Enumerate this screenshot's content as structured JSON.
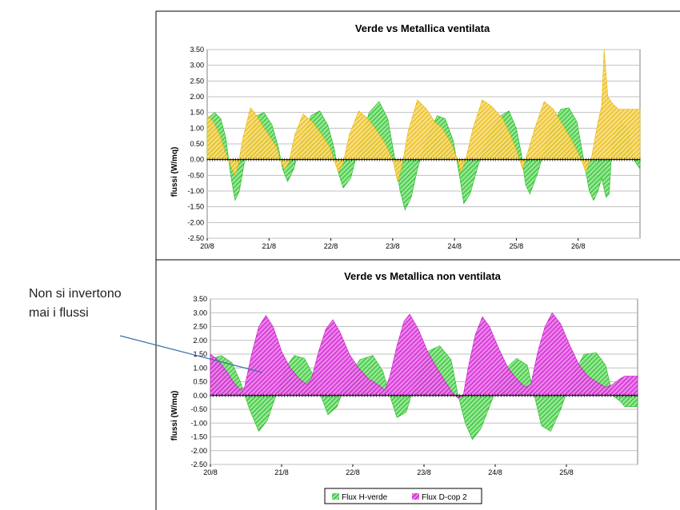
{
  "annotation": {
    "line1": "Non si invertono",
    "line2": "mai i flussi"
  },
  "colors": {
    "green": "#2ecc40",
    "yellow": "#f0c419",
    "magenta": "#d21fd2",
    "arrow": "#3f6fa8"
  },
  "chart_data": [
    {
      "type": "area",
      "title": "Verde vs Metallica ventilata",
      "xlabel": "",
      "ylabel": "flussi (W/mq)",
      "ylim": [
        -2.5,
        3.5
      ],
      "yticks": [
        3.5,
        3.0,
        2.5,
        2.0,
        1.5,
        1.0,
        0.5,
        0.0,
        -0.5,
        -1.0,
        -1.5,
        -2.0,
        -2.5
      ],
      "xlim": [
        0,
        7
      ],
      "xticks": [
        {
          "x": 0,
          "label": "20/8"
        },
        {
          "x": 1,
          "label": "21/8"
        },
        {
          "x": 2,
          "label": "22/8"
        },
        {
          "x": 3,
          "label": "23/8"
        },
        {
          "x": 4,
          "label": "24/8"
        },
        {
          "x": 5,
          "label": "25/8"
        },
        {
          "x": 6,
          "label": "26/8"
        }
      ],
      "grid": true,
      "series": [
        {
          "name": "Flux H-verde",
          "color_key": "green",
          "points": [
            [
              0,
              1.3
            ],
            [
              0.12,
              1.5
            ],
            [
              0.22,
              1.3
            ],
            [
              0.3,
              0.7
            ],
            [
              0.38,
              -0.5
            ],
            [
              0.45,
              -1.3
            ],
            [
              0.52,
              -1.0
            ],
            [
              0.6,
              -0.1
            ],
            [
              0.68,
              0.7
            ],
            [
              0.8,
              1.4
            ],
            [
              0.92,
              1.5
            ],
            [
              1.05,
              1.1
            ],
            [
              1.15,
              0.4
            ],
            [
              1.22,
              -0.3
            ],
            [
              1.3,
              -0.7
            ],
            [
              1.4,
              -0.3
            ],
            [
              1.52,
              0.6
            ],
            [
              1.68,
              1.4
            ],
            [
              1.82,
              1.55
            ],
            [
              1.95,
              1.1
            ],
            [
              2.05,
              0.4
            ],
            [
              2.12,
              -0.4
            ],
            [
              2.2,
              -0.9
            ],
            [
              2.32,
              -0.6
            ],
            [
              2.45,
              0.4
            ],
            [
              2.62,
              1.5
            ],
            [
              2.78,
              1.85
            ],
            [
              2.92,
              1.3
            ],
            [
              3.02,
              0.2
            ],
            [
              3.12,
              -1.0
            ],
            [
              3.2,
              -1.6
            ],
            [
              3.3,
              -1.2
            ],
            [
              3.4,
              -0.3
            ],
            [
              3.55,
              0.7
            ],
            [
              3.72,
              1.4
            ],
            [
              3.85,
              1.3
            ],
            [
              3.98,
              0.6
            ],
            [
              4.08,
              -0.5
            ],
            [
              4.15,
              -1.4
            ],
            [
              4.25,
              -1.1
            ],
            [
              4.38,
              -0.2
            ],
            [
              4.55,
              0.8
            ],
            [
              4.75,
              1.4
            ],
            [
              4.88,
              1.55
            ],
            [
              5.0,
              1.0
            ],
            [
              5.08,
              0.2
            ],
            [
              5.15,
              -0.8
            ],
            [
              5.22,
              -1.1
            ],
            [
              5.35,
              -0.4
            ],
            [
              5.55,
              1.0
            ],
            [
              5.72,
              1.6
            ],
            [
              5.85,
              1.65
            ],
            [
              5.98,
              1.2
            ],
            [
              6.08,
              0.1
            ],
            [
              6.18,
              -1.0
            ],
            [
              6.25,
              -1.3
            ],
            [
              6.32,
              -1.0
            ],
            [
              6.38,
              -0.6
            ],
            [
              6.45,
              -1.2
            ],
            [
              6.5,
              -1.1
            ],
            [
              6.55,
              0.5
            ],
            [
              6.6,
              0.8
            ],
            [
              6.7,
              1.2
            ],
            [
              6.8,
              1.0
            ],
            [
              6.85,
              0.5
            ],
            [
              6.9,
              0.0
            ],
            [
              7.0,
              -0.3
            ]
          ]
        },
        {
          "name": "Flux D-cop",
          "color_key": "yellow",
          "points": [
            [
              0,
              1.4
            ],
            [
              0.1,
              1.2
            ],
            [
              0.2,
              0.8
            ],
            [
              0.3,
              0.2
            ],
            [
              0.4,
              -0.3
            ],
            [
              0.45,
              -0.5
            ],
            [
              0.5,
              -0.2
            ],
            [
              0.58,
              0.7
            ],
            [
              0.7,
              1.65
            ],
            [
              0.8,
              1.4
            ],
            [
              0.92,
              1.0
            ],
            [
              1.02,
              0.7
            ],
            [
              1.12,
              0.4
            ],
            [
              1.18,
              0.0
            ],
            [
              1.25,
              -0.3
            ],
            [
              1.32,
              -0.1
            ],
            [
              1.42,
              0.8
            ],
            [
              1.55,
              1.45
            ],
            [
              1.7,
              1.2
            ],
            [
              1.85,
              0.8
            ],
            [
              1.98,
              0.4
            ],
            [
              2.05,
              0.0
            ],
            [
              2.12,
              -0.4
            ],
            [
              2.2,
              -0.1
            ],
            [
              2.3,
              0.8
            ],
            [
              2.45,
              1.55
            ],
            [
              2.6,
              1.3
            ],
            [
              2.75,
              0.9
            ],
            [
              2.88,
              0.5
            ],
            [
              3.0,
              0.0
            ],
            [
              3.08,
              -0.7
            ],
            [
              3.15,
              -0.2
            ],
            [
              3.25,
              0.9
            ],
            [
              3.4,
              1.9
            ],
            [
              3.55,
              1.6
            ],
            [
              3.68,
              1.2
            ],
            [
              3.8,
              1.0
            ],
            [
              3.95,
              0.5
            ],
            [
              4.05,
              0.0
            ],
            [
              4.1,
              -0.4
            ],
            [
              4.18,
              0.0
            ],
            [
              4.3,
              1.0
            ],
            [
              4.45,
              1.9
            ],
            [
              4.6,
              1.7
            ],
            [
              4.78,
              1.3
            ],
            [
              4.9,
              0.8
            ],
            [
              5.02,
              0.2
            ],
            [
              5.1,
              -0.3
            ],
            [
              5.18,
              0.2
            ],
            [
              5.3,
              1.0
            ],
            [
              5.45,
              1.85
            ],
            [
              5.6,
              1.6
            ],
            [
              5.75,
              1.1
            ],
            [
              5.9,
              0.6
            ],
            [
              6.05,
              0.0
            ],
            [
              6.12,
              -0.4
            ],
            [
              6.22,
              0.1
            ],
            [
              6.32,
              1.2
            ],
            [
              6.38,
              1.7
            ],
            [
              6.42,
              3.5
            ],
            [
              6.48,
              2.0
            ],
            [
              6.55,
              1.8
            ],
            [
              6.65,
              1.6
            ],
            [
              6.75,
              1.6
            ],
            [
              7.0,
              1.6
            ]
          ]
        }
      ]
    },
    {
      "type": "area",
      "title": "Verde vs Metallica non ventilata",
      "xlabel": "",
      "ylabel": "flussi (W/mq)",
      "ylim": [
        -2.5,
        3.5
      ],
      "yticks": [
        3.5,
        3.0,
        2.5,
        2.0,
        1.5,
        1.0,
        0.5,
        0.0,
        -0.5,
        -1.0,
        -1.5,
        -2.0,
        -2.5
      ],
      "xlim": [
        0,
        6
      ],
      "xticks": [
        {
          "x": 0,
          "label": "20/8"
        },
        {
          "x": 1,
          "label": "21/8"
        },
        {
          "x": 2,
          "label": "22/8"
        },
        {
          "x": 3,
          "label": "23/8"
        },
        {
          "x": 4,
          "label": "24/8"
        },
        {
          "x": 5,
          "label": "25/8"
        }
      ],
      "grid": true,
      "legend": "bottom",
      "series": [
        {
          "name": "Flux H-verde",
          "color_key": "green",
          "points": [
            [
              0,
              1.3
            ],
            [
              0.15,
              1.45
            ],
            [
              0.3,
              1.2
            ],
            [
              0.42,
              0.5
            ],
            [
              0.55,
              -0.5
            ],
            [
              0.68,
              -1.3
            ],
            [
              0.8,
              -0.9
            ],
            [
              0.92,
              0.0
            ],
            [
              1.05,
              1.0
            ],
            [
              1.18,
              1.45
            ],
            [
              1.32,
              1.35
            ],
            [
              1.45,
              0.7
            ],
            [
              1.55,
              0.0
            ],
            [
              1.65,
              -0.7
            ],
            [
              1.78,
              -0.4
            ],
            [
              1.92,
              0.6
            ],
            [
              2.1,
              1.3
            ],
            [
              2.28,
              1.45
            ],
            [
              2.42,
              0.9
            ],
            [
              2.52,
              0.0
            ],
            [
              2.62,
              -0.8
            ],
            [
              2.75,
              -0.6
            ],
            [
              2.88,
              0.5
            ],
            [
              3.05,
              1.6
            ],
            [
              3.22,
              1.8
            ],
            [
              3.38,
              1.3
            ],
            [
              3.48,
              0.0
            ],
            [
              3.58,
              -1.0
            ],
            [
              3.68,
              -1.6
            ],
            [
              3.8,
              -1.2
            ],
            [
              3.95,
              -0.2
            ],
            [
              4.12,
              0.9
            ],
            [
              4.3,
              1.35
            ],
            [
              4.45,
              1.1
            ],
            [
              4.55,
              0.0
            ],
            [
              4.65,
              -1.1
            ],
            [
              4.78,
              -1.3
            ],
            [
              4.92,
              -0.5
            ],
            [
              5.08,
              0.7
            ],
            [
              5.25,
              1.5
            ],
            [
              5.42,
              1.55
            ],
            [
              5.55,
              1.1
            ],
            [
              5.65,
              0.0
            ],
            [
              5.75,
              -0.2
            ],
            [
              5.82,
              -0.4
            ],
            [
              6.0,
              -0.4
            ]
          ]
        },
        {
          "name": "Flux D-cop 2",
          "color_key": "magenta",
          "points": [
            [
              0,
              1.5
            ],
            [
              0.1,
              1.3
            ],
            [
              0.22,
              0.9
            ],
            [
              0.32,
              0.5
            ],
            [
              0.42,
              0.2
            ],
            [
              0.48,
              0.3
            ],
            [
              0.58,
              1.5
            ],
            [
              0.68,
              2.5
            ],
            [
              0.78,
              2.9
            ],
            [
              0.88,
              2.5
            ],
            [
              1.0,
              1.6
            ],
            [
              1.12,
              1.0
            ],
            [
              1.25,
              0.6
            ],
            [
              1.35,
              0.4
            ],
            [
              1.42,
              0.6
            ],
            [
              1.52,
              1.6
            ],
            [
              1.62,
              2.4
            ],
            [
              1.72,
              2.75
            ],
            [
              1.82,
              2.3
            ],
            [
              1.95,
              1.5
            ],
            [
              2.08,
              1.0
            ],
            [
              2.22,
              0.6
            ],
            [
              2.35,
              0.4
            ],
            [
              2.45,
              0.2
            ],
            [
              2.52,
              0.7
            ],
            [
              2.62,
              1.8
            ],
            [
              2.72,
              2.7
            ],
            [
              2.8,
              2.95
            ],
            [
              2.92,
              2.4
            ],
            [
              3.05,
              1.6
            ],
            [
              3.18,
              1.0
            ],
            [
              3.3,
              0.5
            ],
            [
              3.4,
              0.1
            ],
            [
              3.48,
              -0.1
            ],
            [
              3.55,
              0.0
            ],
            [
              3.62,
              1.0
            ],
            [
              3.72,
              2.2
            ],
            [
              3.82,
              2.85
            ],
            [
              3.92,
              2.5
            ],
            [
              4.05,
              1.7
            ],
            [
              4.18,
              1.0
            ],
            [
              4.3,
              0.6
            ],
            [
              4.42,
              0.3
            ],
            [
              4.5,
              0.4
            ],
            [
              4.6,
              1.6
            ],
            [
              4.7,
              2.5
            ],
            [
              4.8,
              3.0
            ],
            [
              4.92,
              2.6
            ],
            [
              5.05,
              1.8
            ],
            [
              5.18,
              1.1
            ],
            [
              5.3,
              0.7
            ],
            [
              5.42,
              0.5
            ],
            [
              5.55,
              0.3
            ],
            [
              5.65,
              0.4
            ],
            [
              5.75,
              0.6
            ],
            [
              5.82,
              0.7
            ],
            [
              6.0,
              0.7
            ]
          ]
        }
      ]
    }
  ]
}
